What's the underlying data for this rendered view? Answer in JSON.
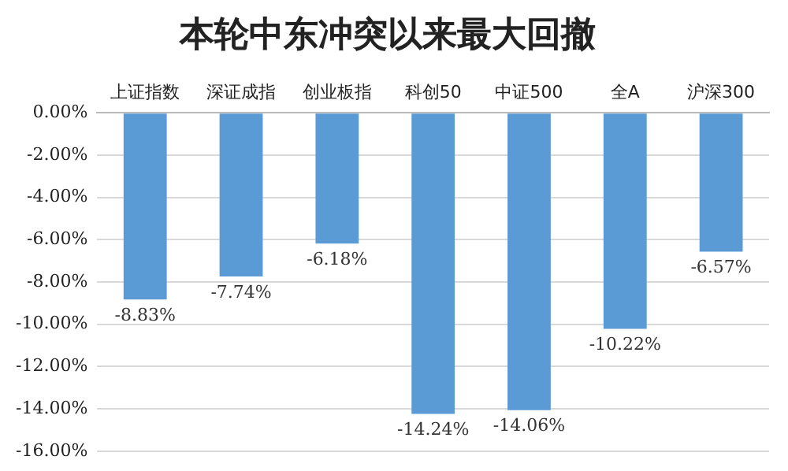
{
  "chart_data": {
    "type": "bar",
    "title": "本轮中东冲突以来最大回撤",
    "categories": [
      "上证指数",
      "深证成指",
      "创业板指",
      "科创50",
      "中证500",
      "全A",
      "沪深300"
    ],
    "values": [
      -8.83,
      -7.74,
      -6.18,
      -14.24,
      -14.06,
      -10.22,
      -6.57
    ],
    "value_labels": [
      "-8.83%",
      "-7.74%",
      "-6.18%",
      "-14.24%",
      "-14.06%",
      "-10.22%",
      "-6.57%"
    ],
    "color": "#5b9bd5",
    "ylim": [
      -16,
      0
    ],
    "yticks": [
      {
        "value": 0,
        "label": "0.00%"
      },
      {
        "value": -2,
        "label": "-2.00%"
      },
      {
        "value": -4,
        "label": "-4.00%"
      },
      {
        "value": -6,
        "label": "-6.00%"
      },
      {
        "value": -8,
        "label": "-8.00%"
      },
      {
        "value": -10,
        "label": "-10.00%"
      },
      {
        "value": -12,
        "label": "-12.00%"
      },
      {
        "value": -14,
        "label": "-14.00%"
      },
      {
        "value": -16,
        "label": "-16.00%"
      }
    ],
    "grid": "y",
    "legend": false
  }
}
